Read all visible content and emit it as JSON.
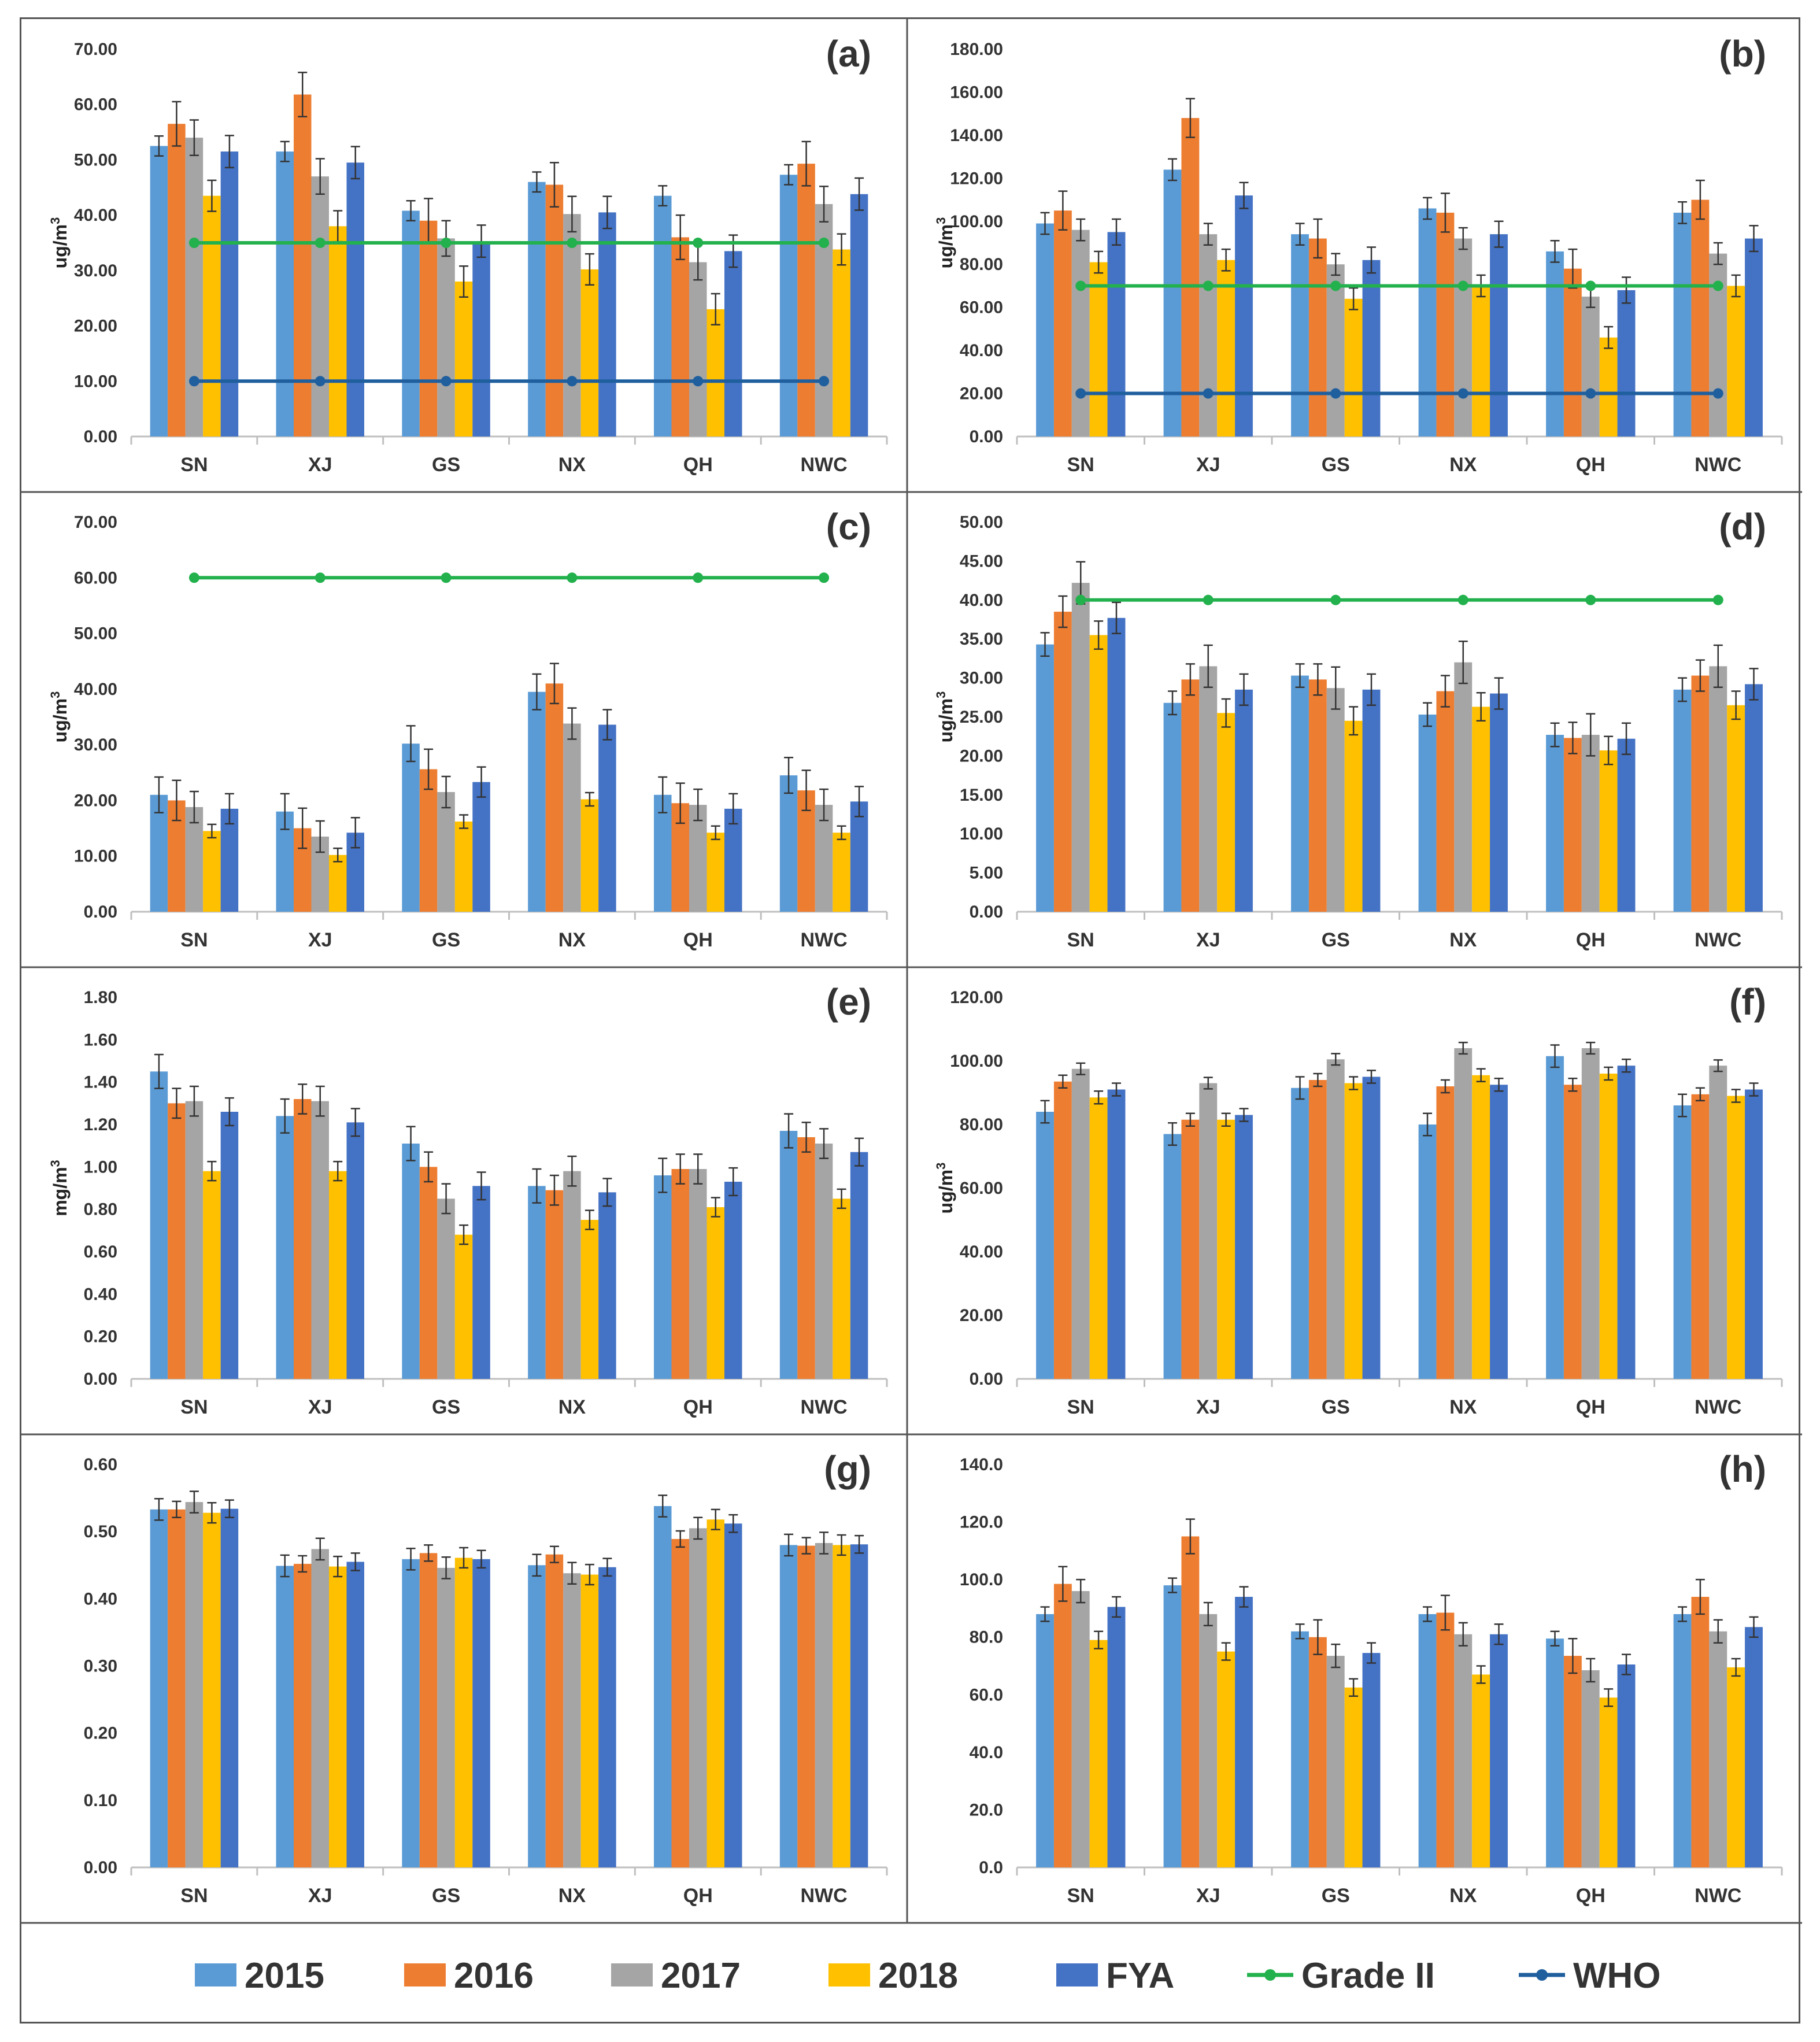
{
  "legend": {
    "items": [
      {
        "label": "2015",
        "kind": "bar",
        "color": "#5B9BD5"
      },
      {
        "label": "2016",
        "kind": "bar",
        "color": "#ED7D31"
      },
      {
        "label": "2017",
        "kind": "bar",
        "color": "#A5A5A5"
      },
      {
        "label": "2018",
        "kind": "bar",
        "color": "#FFC000"
      },
      {
        "label": "FYA",
        "kind": "bar",
        "color": "#4472C4"
      },
      {
        "label": "Grade II",
        "kind": "line",
        "color": "#22B14C"
      },
      {
        "label": "WHO",
        "kind": "line",
        "color": "#1F5F9E"
      }
    ]
  },
  "chart_data": [
    {
      "panel": "(a)",
      "type": "bar",
      "ylabel": "ug/m3",
      "ylim": [
        0,
        70
      ],
      "yticks": [
        "0.00",
        "10.00",
        "20.00",
        "30.00",
        "40.00",
        "50.00",
        "60.00",
        "70.00"
      ],
      "categories": [
        "SN",
        "XJ",
        "GS",
        "NX",
        "QH",
        "NWC"
      ],
      "series": [
        {
          "name": "2015",
          "values": [
            52.5,
            51.5,
            40.8,
            46,
            43.5,
            47.3
          ],
          "errors": [
            1.8,
            1.8,
            1.8,
            1.8,
            1.8,
            1.8
          ]
        },
        {
          "name": "2016",
          "values": [
            56.5,
            61.8,
            39,
            45.5,
            36,
            49.3
          ],
          "errors": [
            4,
            4,
            4,
            4,
            4,
            4
          ]
        },
        {
          "name": "2017",
          "values": [
            54,
            47,
            35.8,
            40.2,
            31.5,
            42
          ],
          "errors": [
            3.2,
            3.2,
            3.2,
            3.2,
            3.2,
            3.2
          ]
        },
        {
          "name": "2018",
          "values": [
            43.5,
            38,
            28,
            30.2,
            23,
            33.8
          ],
          "errors": [
            2.8,
            2.8,
            2.8,
            2.8,
            2.8,
            2.8
          ]
        },
        {
          "name": "FYA",
          "values": [
            51.5,
            49.5,
            35.3,
            40.5,
            33.5,
            43.8
          ],
          "errors": [
            2.9,
            2.9,
            2.9,
            2.9,
            2.9,
            2.9
          ]
        }
      ],
      "lines": [
        {
          "name": "Grade II",
          "value": 35
        },
        {
          "name": "WHO",
          "value": 10
        }
      ]
    },
    {
      "panel": "(b)",
      "type": "bar",
      "ylabel": "ug/m3",
      "ylim": [
        0,
        180
      ],
      "yticks": [
        "0.00",
        "20.00",
        "40.00",
        "60.00",
        "80.00",
        "100.00",
        "120.00",
        "140.00",
        "160.00",
        "180.00"
      ],
      "categories": [
        "SN",
        "XJ",
        "GS",
        "NX",
        "QH",
        "NWC"
      ],
      "series": [
        {
          "name": "2015",
          "values": [
            99,
            124,
            94,
            106,
            86,
            104
          ],
          "errors": [
            5,
            5,
            5,
            5,
            5,
            5
          ]
        },
        {
          "name": "2016",
          "values": [
            105,
            148,
            92,
            104,
            78,
            110
          ],
          "errors": [
            9,
            9,
            9,
            9,
            9,
            9
          ]
        },
        {
          "name": "2017",
          "values": [
            96,
            94,
            80,
            92,
            65,
            85
          ],
          "errors": [
            5,
            5,
            5,
            5,
            5,
            5
          ]
        },
        {
          "name": "2018",
          "values": [
            81,
            82,
            64,
            70,
            46,
            70
          ],
          "errors": [
            5,
            5,
            5,
            5,
            5,
            5
          ]
        },
        {
          "name": "FYA",
          "values": [
            95,
            112,
            82,
            94,
            68,
            92
          ],
          "errors": [
            6,
            6,
            6,
            6,
            6,
            6
          ]
        }
      ],
      "lines": [
        {
          "name": "Grade II",
          "value": 70
        },
        {
          "name": "WHO",
          "value": 20
        }
      ]
    },
    {
      "panel": "(c)",
      "type": "bar",
      "ylabel": "ug/m3",
      "ylim": [
        0,
        70
      ],
      "yticks": [
        "0.00",
        "10.00",
        "20.00",
        "30.00",
        "40.00",
        "50.00",
        "60.00",
        "70.00"
      ],
      "categories": [
        "SN",
        "XJ",
        "GS",
        "NX",
        "QH",
        "NWC"
      ],
      "series": [
        {
          "name": "2015",
          "values": [
            21,
            18,
            30.2,
            39.5,
            21,
            24.5
          ],
          "errors": [
            3.2,
            3.2,
            3.2,
            3.2,
            3.2,
            3.2
          ]
        },
        {
          "name": "2016",
          "values": [
            20,
            15,
            25.6,
            41,
            19.5,
            21.8
          ],
          "errors": [
            3.6,
            3.6,
            3.6,
            3.6,
            3.6,
            3.6
          ]
        },
        {
          "name": "2017",
          "values": [
            18.8,
            13.5,
            21.5,
            33.8,
            19.2,
            19.2
          ],
          "errors": [
            2.8,
            2.8,
            2.8,
            2.8,
            2.8,
            2.8
          ]
        },
        {
          "name": "2018",
          "values": [
            14.5,
            10.2,
            16.2,
            20.2,
            14.2,
            14.2
          ],
          "errors": [
            1.2,
            1.2,
            1.2,
            1.2,
            1.2,
            1.2
          ]
        },
        {
          "name": "FYA",
          "values": [
            18.5,
            14.2,
            23.3,
            33.6,
            18.5,
            19.8
          ],
          "errors": [
            2.7,
            2.7,
            2.7,
            2.7,
            2.7,
            2.7
          ]
        }
      ],
      "lines": [
        {
          "name": "Grade II",
          "value": 60
        }
      ]
    },
    {
      "panel": "(d)",
      "type": "bar",
      "ylabel": "ug/m3",
      "ylim": [
        0,
        50
      ],
      "yticks": [
        "0.00",
        "5.00",
        "10.00",
        "15.00",
        "20.00",
        "25.00",
        "30.00",
        "35.00",
        "40.00",
        "45.00",
        "50.00"
      ],
      "categories": [
        "SN",
        "XJ",
        "GS",
        "NX",
        "QH",
        "NWC"
      ],
      "series": [
        {
          "name": "2015",
          "values": [
            34.3,
            26.8,
            30.3,
            25.3,
            22.7,
            28.5
          ],
          "errors": [
            1.5,
            1.5,
            1.5,
            1.5,
            1.5,
            1.5
          ]
        },
        {
          "name": "2016",
          "values": [
            38.5,
            29.8,
            29.8,
            28.3,
            22.3,
            30.3
          ],
          "errors": [
            2,
            2,
            2,
            2,
            2,
            2
          ]
        },
        {
          "name": "2017",
          "values": [
            42.2,
            31.5,
            28.7,
            32,
            22.7,
            31.5
          ],
          "errors": [
            2.7,
            2.7,
            2.7,
            2.7,
            2.7,
            2.7
          ]
        },
        {
          "name": "2018",
          "values": [
            35.5,
            25.5,
            24.5,
            26.3,
            20.7,
            26.5
          ],
          "errors": [
            1.8,
            1.8,
            1.8,
            1.8,
            1.8,
            1.8
          ]
        },
        {
          "name": "FYA",
          "values": [
            37.7,
            28.5,
            28.5,
            28,
            22.2,
            29.2
          ],
          "errors": [
            2,
            2,
            2,
            2,
            2,
            2
          ]
        }
      ],
      "lines": [
        {
          "name": "Grade II",
          "value": 40
        }
      ]
    },
    {
      "panel": "(e)",
      "type": "bar",
      "ylabel": "mg/m3",
      "ylim": [
        0,
        1.8
      ],
      "yticks": [
        "0.00",
        "0.20",
        "0.40",
        "0.60",
        "0.80",
        "1.00",
        "1.20",
        "1.40",
        "1.60",
        "1.80"
      ],
      "categories": [
        "SN",
        "XJ",
        "GS",
        "NX",
        "QH",
        "NWC"
      ],
      "series": [
        {
          "name": "2015",
          "values": [
            1.45,
            1.24,
            1.11,
            0.91,
            0.96,
            1.17
          ],
          "errors": [
            0.08,
            0.08,
            0.08,
            0.08,
            0.08,
            0.08
          ]
        },
        {
          "name": "2016",
          "values": [
            1.3,
            1.32,
            1.0,
            0.89,
            0.99,
            1.14
          ],
          "errors": [
            0.07,
            0.07,
            0.07,
            0.07,
            0.07,
            0.07
          ]
        },
        {
          "name": "2017",
          "values": [
            1.31,
            1.31,
            0.85,
            0.98,
            0.99,
            1.11
          ],
          "errors": [
            0.07,
            0.07,
            0.07,
            0.07,
            0.07,
            0.07
          ]
        },
        {
          "name": "2018",
          "values": [
            0.98,
            0.98,
            0.68,
            0.75,
            0.81,
            0.85
          ],
          "errors": [
            0.045,
            0.045,
            0.045,
            0.045,
            0.045,
            0.045
          ]
        },
        {
          "name": "FYA",
          "values": [
            1.26,
            1.21,
            0.91,
            0.88,
            0.93,
            1.07
          ],
          "errors": [
            0.065,
            0.065,
            0.065,
            0.065,
            0.065,
            0.065
          ]
        }
      ],
      "lines": []
    },
    {
      "panel": "(f)",
      "type": "bar",
      "ylabel": "ug/m3",
      "ylim": [
        0,
        120
      ],
      "yticks": [
        "0.00",
        "20.00",
        "40.00",
        "60.00",
        "80.00",
        "100.00",
        "120.00"
      ],
      "categories": [
        "SN",
        "XJ",
        "GS",
        "NX",
        "QH",
        "NWC"
      ],
      "series": [
        {
          "name": "2015",
          "values": [
            84,
            77,
            91.5,
            80,
            101.5,
            86
          ],
          "errors": [
            3.5,
            3.5,
            3.5,
            3.5,
            3.5,
            3.5
          ]
        },
        {
          "name": "2016",
          "values": [
            93.5,
            81.5,
            94,
            92,
            92.5,
            89.5
          ],
          "errors": [
            2,
            2,
            2,
            2,
            2,
            2
          ]
        },
        {
          "name": "2017",
          "values": [
            97.5,
            93,
            100.5,
            104,
            104,
            98.5
          ],
          "errors": [
            1.8,
            1.8,
            1.8,
            1.8,
            1.8,
            1.8
          ]
        },
        {
          "name": "2018",
          "values": [
            88.5,
            81.5,
            93,
            95.5,
            96,
            89
          ],
          "errors": [
            2,
            2,
            2,
            2,
            2,
            2
          ]
        },
        {
          "name": "FYA",
          "values": [
            91,
            83,
            95,
            92.5,
            98.5,
            91
          ],
          "errors": [
            2,
            2,
            2,
            2,
            2,
            2
          ]
        }
      ],
      "lines": []
    },
    {
      "panel": "(g)",
      "type": "bar",
      "ylabel": "",
      "ylim": [
        0,
        0.6
      ],
      "yticks": [
        "0.00",
        "0.10",
        "0.20",
        "0.30",
        "0.40",
        "0.50",
        "0.60"
      ],
      "categories": [
        "SN",
        "XJ",
        "GS",
        "NX",
        "QH",
        "NWC"
      ],
      "series": [
        {
          "name": "2015",
          "values": [
            0.533,
            0.449,
            0.459,
            0.45,
            0.538,
            0.48
          ],
          "errors": [
            0.016,
            0.016,
            0.016,
            0.016,
            0.016,
            0.016
          ]
        },
        {
          "name": "2016",
          "values": [
            0.533,
            0.452,
            0.468,
            0.466,
            0.489,
            0.479
          ],
          "errors": [
            0.012,
            0.012,
            0.012,
            0.012,
            0.012,
            0.012
          ]
        },
        {
          "name": "2017",
          "values": [
            0.544,
            0.474,
            0.446,
            0.438,
            0.505,
            0.483
          ],
          "errors": [
            0.016,
            0.016,
            0.016,
            0.016,
            0.016,
            0.016
          ]
        },
        {
          "name": "2018",
          "values": [
            0.528,
            0.448,
            0.461,
            0.436,
            0.518,
            0.48
          ],
          "errors": [
            0.015,
            0.015,
            0.015,
            0.015,
            0.015,
            0.015
          ]
        },
        {
          "name": "FYA",
          "values": [
            0.534,
            0.455,
            0.459,
            0.447,
            0.512,
            0.481
          ],
          "errors": [
            0.013,
            0.013,
            0.013,
            0.013,
            0.013,
            0.013
          ]
        }
      ],
      "lines": []
    },
    {
      "panel": "(h)",
      "type": "bar",
      "ylabel": "",
      "ylim": [
        0,
        140
      ],
      "yticks": [
        "0.0",
        "20.0",
        "40.0",
        "60.0",
        "80.0",
        "100.0",
        "120.0",
        "140.0"
      ],
      "categories": [
        "SN",
        "XJ",
        "GS",
        "NX",
        "QH",
        "NWC"
      ],
      "series": [
        {
          "name": "2015",
          "values": [
            88,
            98,
            82,
            88,
            79.5,
            88
          ],
          "errors": [
            2.5,
            2.5,
            2.5,
            2.5,
            2.5,
            2.5
          ]
        },
        {
          "name": "2016",
          "values": [
            98.5,
            115,
            80,
            88.5,
            73.5,
            94
          ],
          "errors": [
            6,
            6,
            6,
            6,
            6,
            6
          ]
        },
        {
          "name": "2017",
          "values": [
            96,
            88,
            73.5,
            81,
            68.5,
            82
          ],
          "errors": [
            4,
            4,
            4,
            4,
            4,
            4
          ]
        },
        {
          "name": "2018",
          "values": [
            79,
            75,
            62.5,
            67,
            59,
            69.5
          ],
          "errors": [
            3,
            3,
            3,
            3,
            3,
            3
          ]
        },
        {
          "name": "FYA",
          "values": [
            90.5,
            94,
            74.5,
            81,
            70.5,
            83.5
          ],
          "errors": [
            3.5,
            3.5,
            3.5,
            3.5,
            3.5,
            3.5
          ]
        }
      ],
      "lines": []
    }
  ]
}
